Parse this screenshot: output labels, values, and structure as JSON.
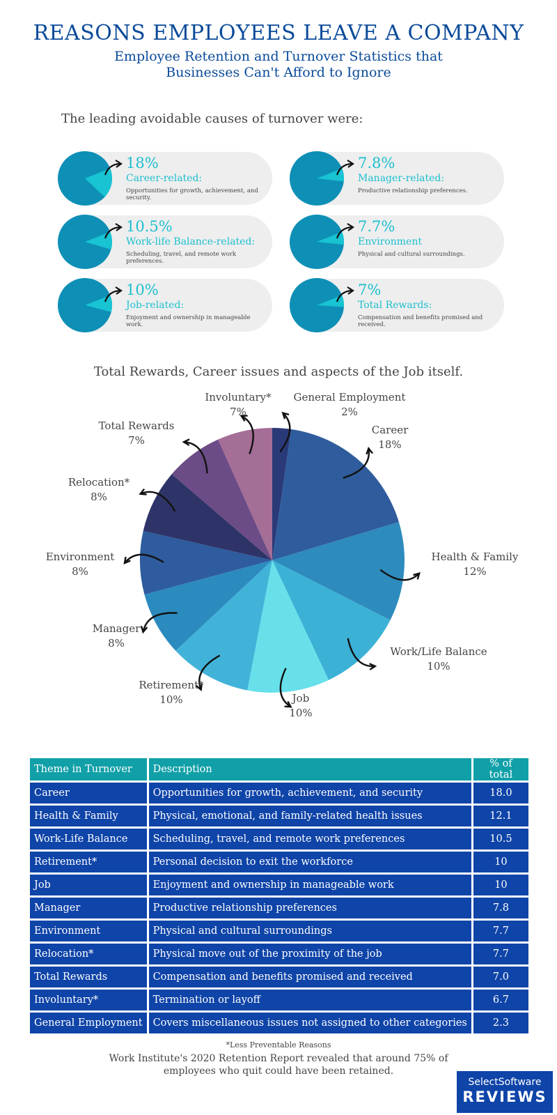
{
  "header": {
    "title": "REASONS EMPLOYEES LEAVE A COMPANY",
    "subtitle": "Employee Retention and Turnover Statistics that Businesses Can't Afford to Ignore"
  },
  "intro": "The leading avoidable causes of turnover were:",
  "causes": [
    {
      "pct": "18%",
      "fraction": 0.18,
      "label": "Career-related:",
      "desc": "Opportunities for growth, achievement, and security."
    },
    {
      "pct": "7.8%",
      "fraction": 0.078,
      "label": "Manager-related:",
      "desc": "Productive relationship preferences."
    },
    {
      "pct": "10.5%",
      "fraction": 0.105,
      "label": "Work-life Balance-related:",
      "desc": "Scheduling, travel, and remote work preferences."
    },
    {
      "pct": "7.7%",
      "fraction": 0.077,
      "label": "Environment",
      "desc": "Physical and cultural surroundings."
    },
    {
      "pct": "10%",
      "fraction": 0.1,
      "label": "Job-related:",
      "desc": "Enjoyment and ownership in manageable work."
    },
    {
      "pct": "7%",
      "fraction": 0.07,
      "label": "Total Rewards:",
      "desc": "Compensation and benefits promised and received."
    }
  ],
  "pie_heading": "Total Rewards, Career issues and aspects of the Job itself.",
  "chart_data": {
    "type": "pie",
    "slices": [
      {
        "label": "General Employment",
        "pct_label": "2%",
        "value": 2.3,
        "color": "#2a3a78"
      },
      {
        "label": "Career",
        "pct_label": "18%",
        "value": 18.0,
        "color": "#2f5c9c"
      },
      {
        "label": "Health & Family",
        "pct_label": "12%",
        "value": 12.1,
        "color": "#2e8bbd"
      },
      {
        "label": "Work/Life Balance",
        "pct_label": "10%",
        "value": 10.5,
        "color": "#3bb1d6"
      },
      {
        "label": "Job",
        "pct_label": "10%",
        "value": 10,
        "color": "#67e0ea"
      },
      {
        "label": "Retirement*",
        "pct_label": "10%",
        "value": 10,
        "color": "#41b3d9"
      },
      {
        "label": "Manager",
        "pct_label": "8%",
        "value": 7.8,
        "color": "#2c8bbe"
      },
      {
        "label": "Environment",
        "pct_label": "8%",
        "value": 7.7,
        "color": "#2e5c9e"
      },
      {
        "label": "Relocation*",
        "pct_label": "8%",
        "value": 7.7,
        "color": "#2e3468"
      },
      {
        "label": "Total Rewards",
        "pct_label": "7%",
        "value": 7.0,
        "color": "#6c4c86"
      },
      {
        "label": "Involuntary*",
        "pct_label": "7%",
        "value": 6.7,
        "color": "#a46e97"
      }
    ]
  },
  "table": {
    "headers": [
      "Theme in Turnover",
      "Description",
      "% of total"
    ],
    "rows": [
      [
        "Career",
        "Opportunities for growth, achievement, and security",
        "18.0"
      ],
      [
        "Health & Family",
        "Physical, emotional, and family-related health issues",
        "12.1"
      ],
      [
        "Work-Life Balance",
        "Scheduling, travel, and remote work preferences",
        "10.5"
      ],
      [
        "Retirement*",
        "Personal decision to exit the workforce",
        "10"
      ],
      [
        "Job",
        "Enjoyment and ownership in manageable work",
        "10"
      ],
      [
        "Manager",
        "Productive relationship preferences",
        "7.8"
      ],
      [
        "Environment",
        "Physical and cultural surroundings",
        "7.7"
      ],
      [
        "Relocation*",
        "Physical move out of the proximity of the job",
        "7.7"
      ],
      [
        "Total Rewards",
        "Compensation and benefits promised and received",
        "7.0"
      ],
      [
        "Involuntary*",
        "Termination or layoff",
        "6.7"
      ],
      [
        "General Employment",
        "Covers miscellaneous issues not assigned to other categories",
        "2.3"
      ]
    ]
  },
  "footnote": "*Less Preventable Reasons",
  "source": "Work Institute's 2020 Retention Report revealed that around 75% of employees who quit could have been retained.",
  "brand": {
    "top": "SelectSoftware",
    "bottom": "REVIEWS"
  },
  "colors": {
    "title_blue": "#0a4a9a",
    "accent_teal": "#1bbfcf",
    "mini_pie_dark": "#0e8fb6",
    "mini_pie_light": "#18c3d2",
    "table_header": "#11a0a8",
    "table_cell": "#0f44a8"
  }
}
